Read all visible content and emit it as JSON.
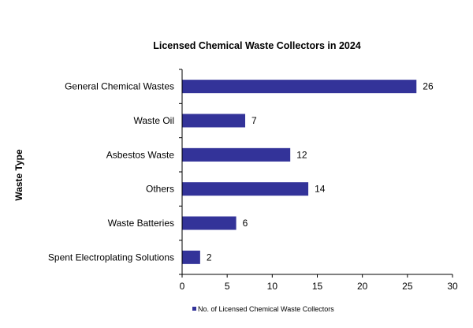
{
  "chart_data": {
    "type": "bar",
    "orientation": "horizontal",
    "title": "Licensed Chemical Waste Collectors  in 2024",
    "ylabel": "Waste Type",
    "xlabel": "",
    "categories": [
      "General Chemical Wastes",
      "Waste Oil",
      "Asbestos Waste",
      "Others",
      "Waste Batteries",
      "Spent Electroplating Solutions"
    ],
    "series": [
      {
        "name": "No. of Licensed Chemical Waste Collectors",
        "values": [
          26,
          7,
          12,
          14,
          6,
          2
        ],
        "color": "#333399"
      }
    ],
    "xlim": [
      0,
      30
    ],
    "xticks": [
      0,
      5,
      10,
      15,
      20,
      25,
      30
    ],
    "grid": false,
    "data_labels": true,
    "legend_position": "bottom"
  }
}
